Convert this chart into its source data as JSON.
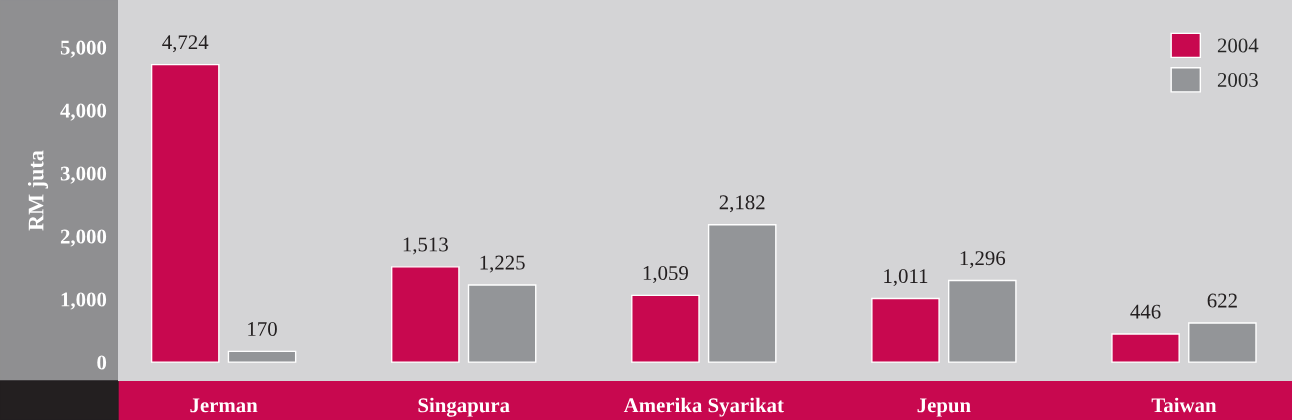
{
  "chart_data": {
    "type": "bar",
    "ylabel": "RM juta",
    "categories": [
      "Jerman",
      "Singapura",
      "Amerika Syarikat",
      "Jepun",
      "Taiwan"
    ],
    "series": [
      {
        "name": "2004",
        "color": "#c8084f",
        "values": [
          4724,
          1513,
          1059,
          1011,
          446
        ],
        "value_labels": [
          "4,724",
          "1,513",
          "1,059",
          "1,011",
          "446"
        ]
      },
      {
        "name": "2003",
        "color": "#939598",
        "values": [
          170,
          1225,
          2182,
          1296,
          622
        ],
        "value_labels": [
          "170",
          "1,225",
          "2,182",
          "1,296",
          "622"
        ]
      }
    ],
    "ylim": [
      -300,
      5750
    ],
    "yticks": [
      {
        "value": 0,
        "label": "0"
      },
      {
        "value": 1000,
        "label": "1,000"
      },
      {
        "value": 2000,
        "label": "2,000"
      },
      {
        "value": 3000,
        "label": "3,000"
      },
      {
        "value": 4000,
        "label": "4,000"
      },
      {
        "value": 5000,
        "label": "5,000"
      }
    ],
    "legend": "top right",
    "grid": false
  }
}
